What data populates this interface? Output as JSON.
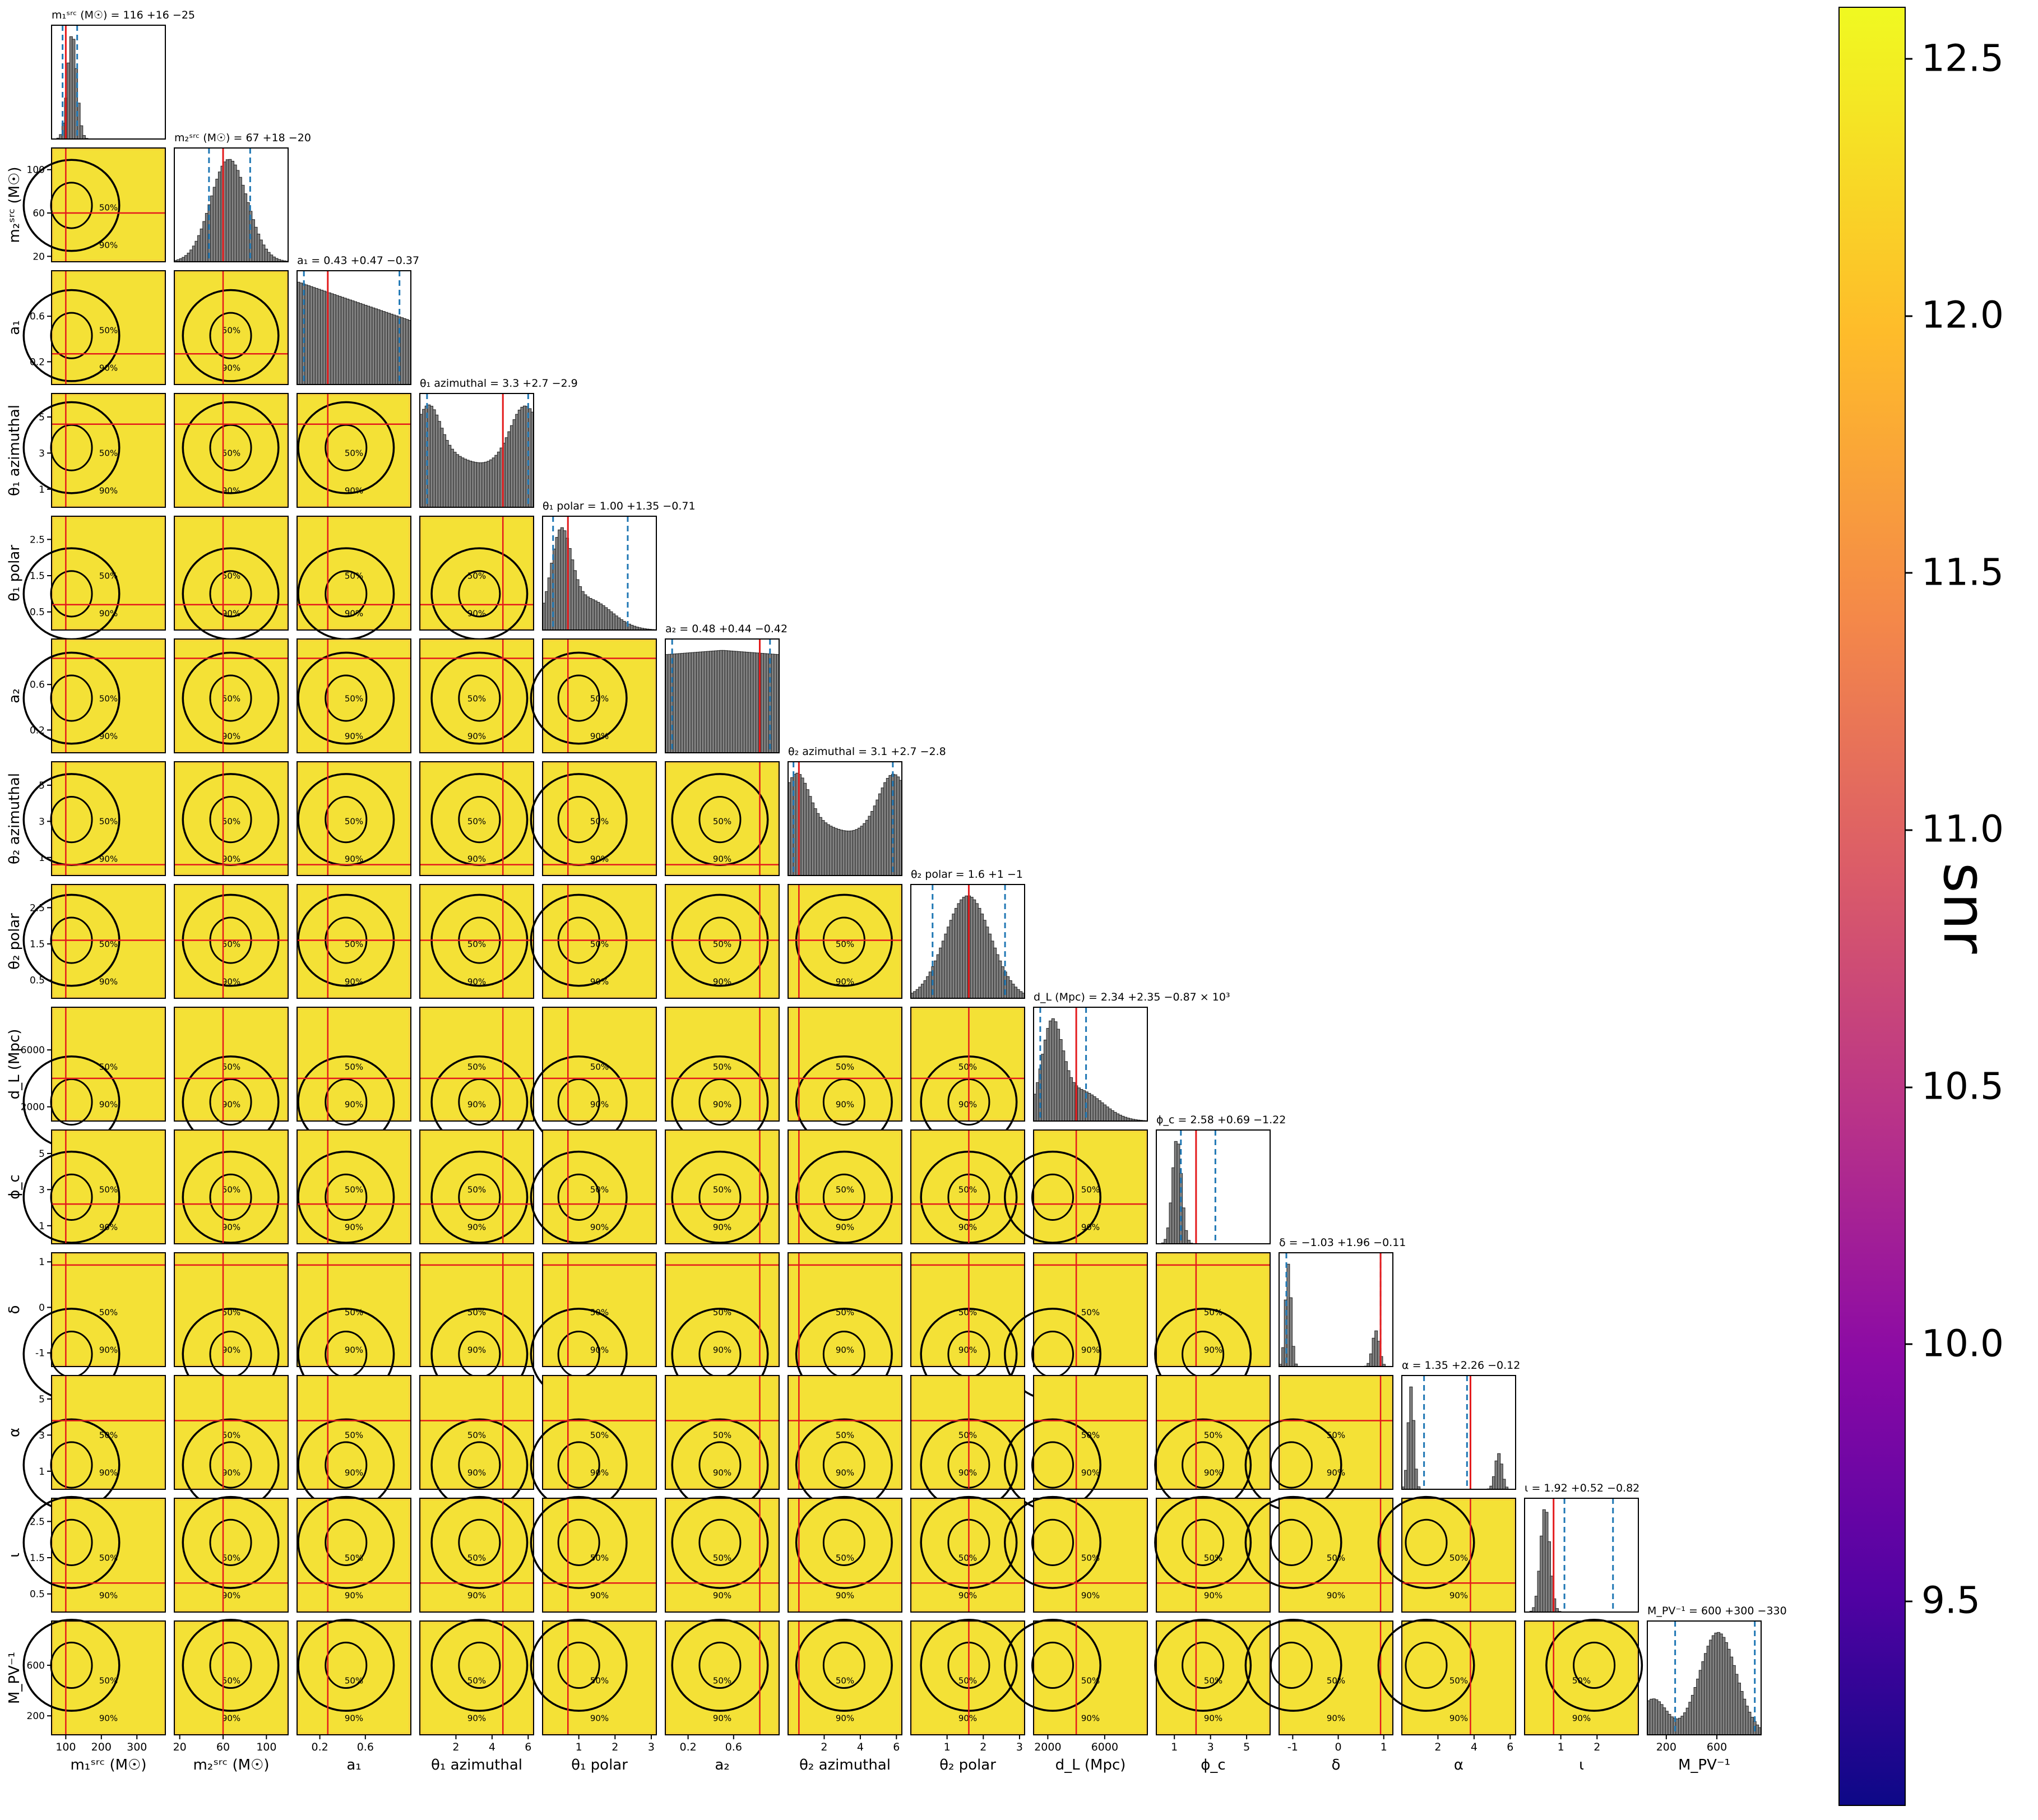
{
  "chart_data": {
    "type": "corner",
    "parameters": [
      {
        "key": "m1",
        "label": "m₁ˢʳᶜ (M☉)",
        "title": "m₁ˢʳᶜ (M☉) = 116 +16 −25",
        "median": 116,
        "plus": 16,
        "minus": 25,
        "truth": 100,
        "range": [
          60,
          380
        ],
        "ticks": [
          100,
          200,
          300
        ],
        "dist": "narrow"
      },
      {
        "key": "m2",
        "label": "m₂ˢʳᶜ (M☉)",
        "title": "m₂ˢʳᶜ (M☉) = 67 +18 −20",
        "median": 67,
        "plus": 18,
        "minus": 20,
        "truth": 60,
        "range": [
          15,
          120
        ],
        "ticks": [
          20,
          60,
          100
        ],
        "dist": "peak"
      },
      {
        "key": "a1",
        "label": "a₁",
        "title": "a₁ = 0.43 +0.47 −0.37",
        "median": 0.43,
        "plus": 0.47,
        "minus": 0.37,
        "truth": 0.27,
        "range": [
          0,
          1
        ],
        "ticks": [
          0.2,
          0.6
        ],
        "dist": "decreasing"
      },
      {
        "key": "th1a",
        "label": "θ₁ azimuthal",
        "title": "θ₁ azimuthal = 3.3 +2.7 −2.9",
        "median": 3.3,
        "plus": 2.7,
        "minus": 2.9,
        "truth": 4.6,
        "range": [
          0,
          6.3
        ],
        "ticks": [
          2,
          4,
          6
        ],
        "dist": "bimodal"
      },
      {
        "key": "th1p",
        "label": "θ₁ polar",
        "title": "θ₁ polar = 1.00 +1.35 −0.71",
        "median": 1.0,
        "plus": 1.35,
        "minus": 0.71,
        "truth": 0.7,
        "range": [
          0,
          3.14
        ],
        "ticks": [
          1,
          2,
          3
        ],
        "dist": "skewed"
      },
      {
        "key": "a2",
        "label": "a₂",
        "title": "a₂ = 0.48 +0.44 −0.42",
        "median": 0.48,
        "plus": 0.44,
        "minus": 0.42,
        "truth": 0.83,
        "range": [
          0,
          1
        ],
        "ticks": [
          0.2,
          0.6
        ],
        "dist": "flat"
      },
      {
        "key": "th2a",
        "label": "θ₂ azimuthal",
        "title": "θ₂ azimuthal = 3.1 +2.7 −2.8",
        "median": 3.1,
        "plus": 2.7,
        "minus": 2.8,
        "truth": 0.6,
        "range": [
          0,
          6.3
        ],
        "ticks": [
          2,
          4,
          6
        ],
        "dist": "bimodal"
      },
      {
        "key": "th2p",
        "label": "θ₂ polar",
        "title": "θ₂ polar = 1.6 +1 −1",
        "median": 1.6,
        "plus": 1.0,
        "minus": 1.0,
        "truth": 1.6,
        "range": [
          0,
          3.14
        ],
        "ticks": [
          1,
          2,
          3
        ],
        "dist": "bell"
      },
      {
        "key": "dL",
        "label": "d_L (Mpc)",
        "title": "d_L (Mpc) = 2.34 +2.35 −0.87 × 10³",
        "median": 2340,
        "plus": 2350,
        "minus": 870,
        "truth": 4000,
        "range": [
          1000,
          9000
        ],
        "ticks": [
          2000,
          6000
        ],
        "dist": "skewed"
      },
      {
        "key": "phic",
        "label": "ϕ_c",
        "title": "ϕ_c = 2.58 +0.69 −1.22",
        "median": 2.58,
        "plus": 0.69,
        "minus": 1.22,
        "truth": 2.2,
        "range": [
          0,
          6.3
        ],
        "ticks": [
          1,
          3,
          5
        ],
        "dist": "narrow"
      },
      {
        "key": "delta",
        "label": "δ",
        "title": "δ = −1.03 +1.96 −0.11",
        "median": -1.03,
        "plus": 1.96,
        "minus": 0.11,
        "truth": 0.93,
        "range": [
          -1.3,
          1.2
        ],
        "ticks": [
          -1,
          0,
          1
        ],
        "dist": "twopeak"
      },
      {
        "key": "alpha",
        "label": "α",
        "title": "α = 1.35 +2.26 −0.12",
        "median": 1.35,
        "plus": 2.26,
        "minus": 0.12,
        "truth": 3.8,
        "range": [
          0,
          6.3
        ],
        "ticks": [
          2,
          4,
          6
        ],
        "dist": "twopeak"
      },
      {
        "key": "iota",
        "label": "ι",
        "title": "ι = 1.92 +0.52 −0.82",
        "median": 1.92,
        "plus": 0.52,
        "minus": 0.82,
        "truth": 0.8,
        "range": [
          0,
          3.14
        ],
        "ticks": [
          1,
          2
        ],
        "dist": "narrow"
      },
      {
        "key": "Mpv",
        "label": "M_PV⁻¹",
        "title": "M_PV⁻¹ = 600 +300 −330",
        "median": 600,
        "plus": 300,
        "minus": 330,
        "truth": null,
        "range": [
          50,
          950
        ],
        "ticks": [
          200,
          600
        ],
        "dist": "hump"
      }
    ],
    "row_tick_labels": {
      "m2": [
        "20",
        "60",
        "100"
      ],
      "a1": [
        "0.2",
        "0.6"
      ],
      "th1a": [
        "1",
        "3",
        "5"
      ],
      "th1p": [
        "0.5",
        "1.5",
        "2.5"
      ],
      "a2": [
        "0.2",
        "0.6"
      ],
      "th2a": [
        "1",
        "3",
        "5"
      ],
      "th2p": [
        "0.5",
        "1.5",
        "2.5"
      ],
      "dL": [
        "2000",
        "6000"
      ],
      "phic": [
        "1",
        "3",
        "5"
      ],
      "delta": [
        "-1",
        "0",
        "1"
      ],
      "alpha": [
        "1",
        "3",
        "5"
      ],
      "iota": [
        "0.5",
        "1.5",
        "2.5"
      ],
      "Mpv": [
        "200",
        "600"
      ]
    },
    "contour_levels": [
      "50%",
      "90%"
    ],
    "colorbar": {
      "label": "snr",
      "ticks": [
        9.5,
        10.0,
        10.5,
        11.0,
        11.5,
        12.0,
        12.5
      ],
      "range": [
        9.1,
        12.6
      ],
      "colormap": "plasma"
    },
    "colors": {
      "truth": "#e41a1c",
      "quantile": "#1f77b4",
      "hist": "#808080",
      "contour": "#000000"
    },
    "grid": false
  }
}
